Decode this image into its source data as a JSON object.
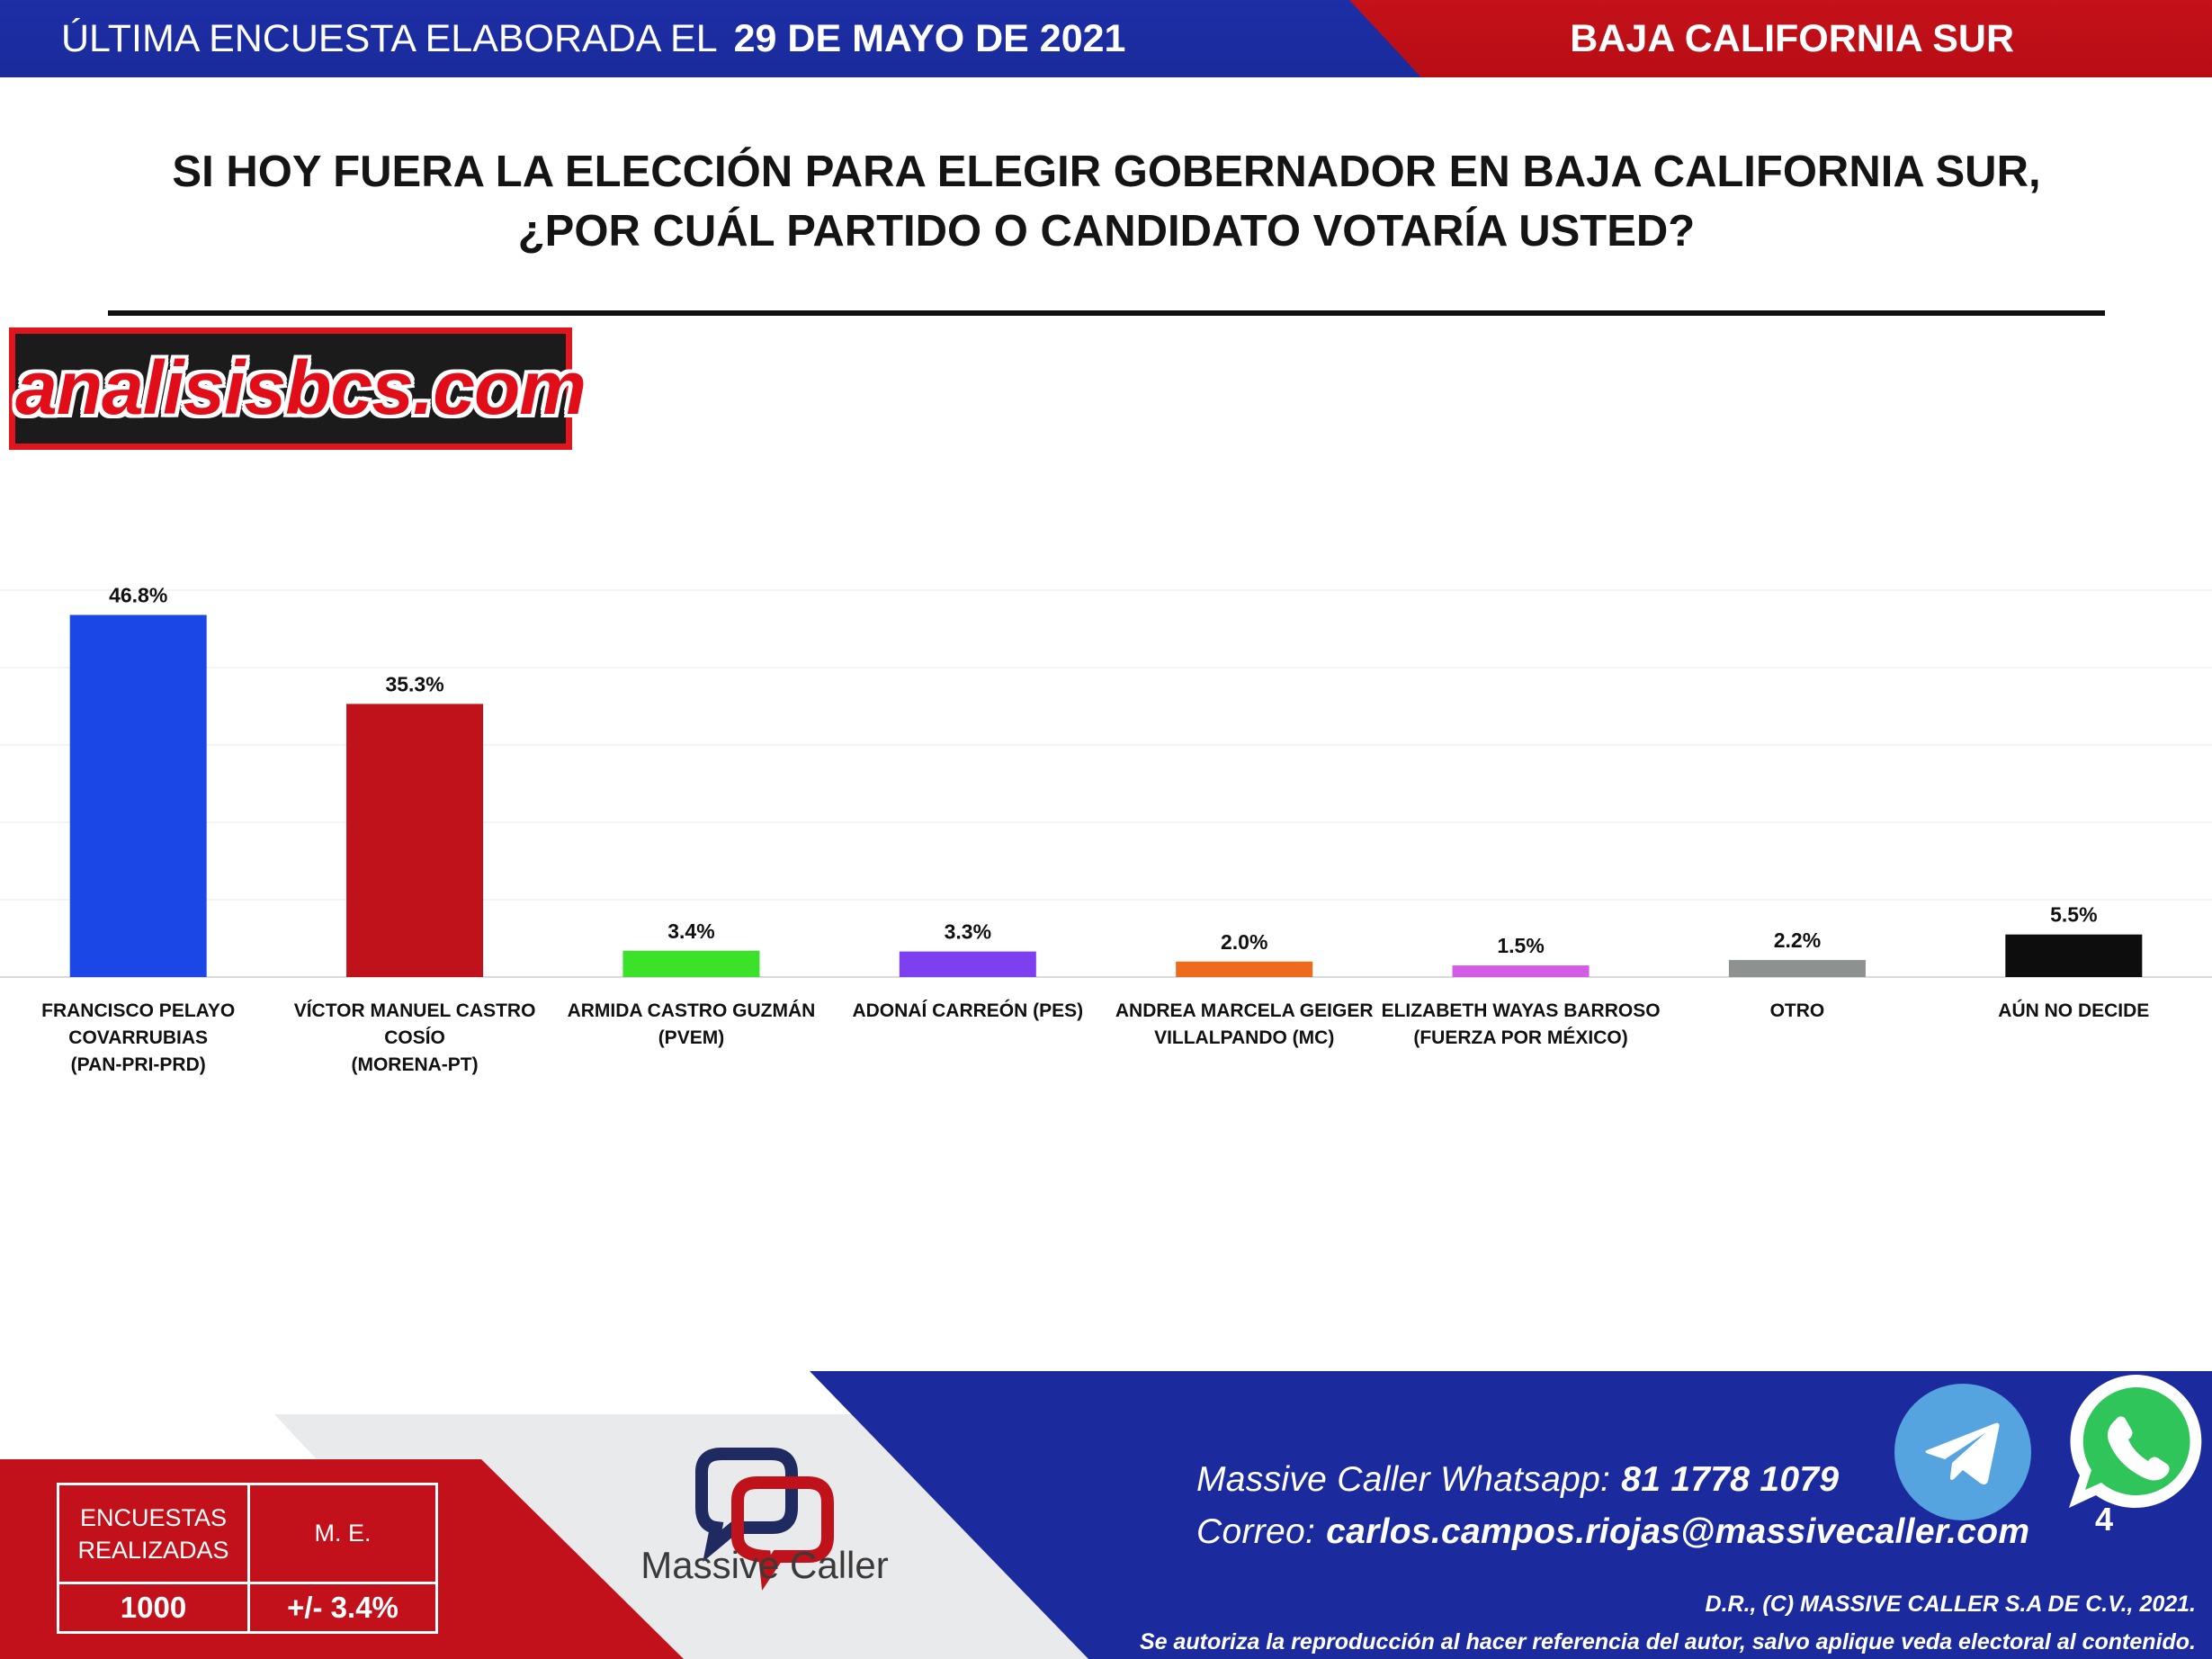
{
  "header": {
    "survey_label": "ÚLTIMA ENCUESTA ELABORADA EL",
    "survey_date": "29 DE MAYO DE 2021",
    "region": "BAJA CALIFORNIA SUR"
  },
  "question": {
    "line1": "SI HOY FUERA LA ELECCIÓN PARA ELEGIR GOBERNADOR EN BAJA CALIFORNIA SUR,",
    "line2": "¿POR CUÁL PARTIDO O CANDIDATO VOTARÍA USTED?"
  },
  "watermark": "analisisbcs.com",
  "chart_data": {
    "type": "bar",
    "categories": [
      [
        "FRANCISCO PELAYO",
        "COVARRUBIAS",
        "(PAN-PRI-PRD)"
      ],
      [
        "VÍCTOR MANUEL CASTRO",
        "COSÍO",
        "(MORENA-PT)"
      ],
      [
        "ARMIDA CASTRO GUZMÁN",
        "(PVEM)"
      ],
      [
        "ADONAÍ CARREÓN (PES)"
      ],
      [
        "ANDREA MARCELA GEIGER",
        "VILLALPANDO (MC)"
      ],
      [
        "ELIZABETH WAYAS BARROSO",
        "(FUERZA POR MÉXICO)"
      ],
      [
        "OTRO"
      ],
      [
        "AÚN NO DECIDE"
      ]
    ],
    "values": [
      46.8,
      35.3,
      3.4,
      3.3,
      2.0,
      1.5,
      2.2,
      5.5
    ],
    "data_labels": [
      "46.8%",
      "35.3%",
      "3.4%",
      "3.3%",
      "2.0%",
      "1.5%",
      "2.2%",
      "5.5%"
    ],
    "colors": [
      "#1a47e6",
      "#c0121a",
      "#3ce22a",
      "#7e3ff0",
      "#ee6a1c",
      "#d45be6",
      "#8d9291",
      "#0d0d0d"
    ],
    "ylim": [
      0,
      50
    ],
    "grid": true,
    "legend": "none"
  },
  "footer": {
    "stats": {
      "surveys_label": "ENCUESTAS REALIZADAS",
      "surveys_value": "1000",
      "me_label": "M. E.",
      "me_value": "+/- 3.4%"
    },
    "brand": "Massive Caller",
    "contact": {
      "whatsapp_label": "Massive Caller Whatsapp:",
      "whatsapp_value": "81 1778 1079",
      "email_label": "Correo:",
      "email_value": "carlos.campos.riojas@massivecaller.com"
    },
    "page_number": "4",
    "legal_line1": "D.R., (C) MASSIVE CALLER S.A DE C.V., 2021.",
    "legal_line2": "Se autoriza la reproducción al hacer referencia del autor, salvo aplique veda electoral al contenido.",
    "icons": [
      "telegram-icon",
      "whatsapp-icon"
    ]
  }
}
